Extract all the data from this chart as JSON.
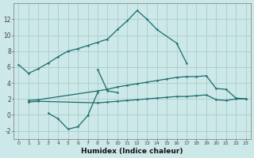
{
  "xlabel": "Humidex (Indice chaleur)",
  "background_color": "#cce8e8",
  "grid_color": "#aacccc",
  "line_color": "#1a6b6b",
  "curve1_x": [
    0,
    1,
    2,
    3,
    4,
    5,
    6,
    7,
    8,
    9,
    10,
    11,
    12,
    13,
    14,
    16,
    17
  ],
  "curve1_y": [
    6.3,
    5.2,
    5.8,
    6.5,
    7.3,
    8.0,
    8.3,
    8.7,
    9.1,
    9.5,
    10.7,
    11.8,
    13.1,
    12.0,
    10.7,
    9.0,
    6.5
  ],
  "curve2_x": [
    8,
    9,
    10
  ],
  "curve2_y": [
    5.7,
    3.0,
    2.8
  ],
  "curve3_x": [
    3,
    4,
    5,
    6,
    7,
    8
  ],
  "curve3_y": [
    0.2,
    -0.5,
    -1.8,
    -1.5,
    -0.1,
    2.8
  ],
  "curve_top_x": [
    1,
    2,
    8,
    9,
    10,
    11,
    12,
    13,
    14,
    15,
    16,
    17,
    18,
    19,
    20,
    21,
    22,
    23
  ],
  "curve_top_y": [
    1.8,
    1.9,
    3.0,
    3.2,
    3.5,
    3.7,
    3.9,
    4.1,
    4.3,
    4.5,
    4.7,
    4.8,
    4.8,
    4.9,
    3.3,
    3.2,
    2.1,
    2.0
  ],
  "curve_bot_x": [
    1,
    2,
    8,
    9,
    10,
    11,
    12,
    13,
    14,
    15,
    16,
    17,
    18,
    19,
    20,
    21,
    22,
    23
  ],
  "curve_bot_y": [
    1.6,
    1.7,
    1.5,
    1.6,
    1.7,
    1.8,
    1.9,
    2.0,
    2.1,
    2.2,
    2.3,
    2.3,
    2.4,
    2.5,
    1.9,
    1.8,
    2.0,
    2.0
  ],
  "ylim": [
    -3,
    14
  ],
  "xlim": [
    -0.5,
    23.5
  ],
  "yticks": [
    -2,
    0,
    2,
    4,
    6,
    8,
    10,
    12
  ],
  "xticks": [
    0,
    1,
    2,
    3,
    4,
    5,
    6,
    7,
    8,
    9,
    10,
    11,
    12,
    13,
    14,
    15,
    16,
    17,
    18,
    19,
    20,
    21,
    22,
    23
  ]
}
